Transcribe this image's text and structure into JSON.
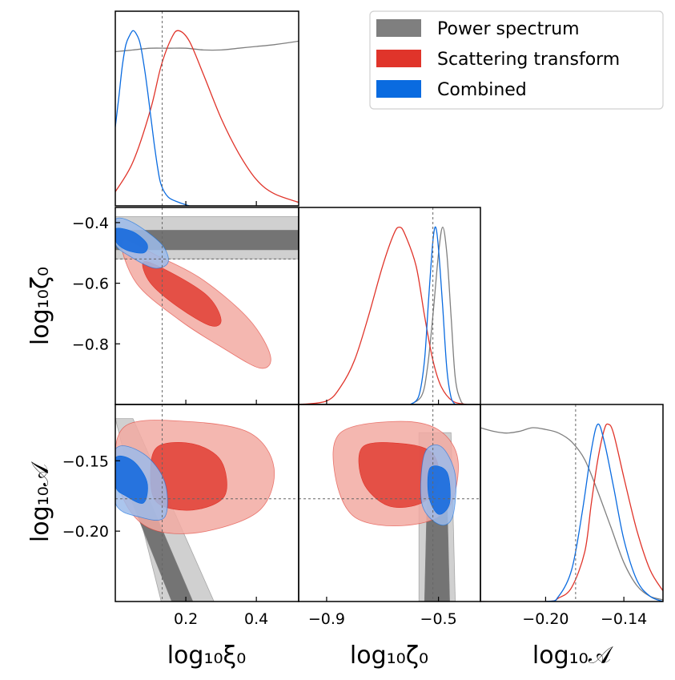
{
  "chart_data": {
    "type": "scatter",
    "subtype": "corner-plot",
    "parameters": [
      {
        "key": "xi0",
        "label": "log₁₀ξ₀",
        "truth": 0.133
      },
      {
        "key": "zeta0",
        "label": "log₁₀ζ₀",
        "truth": -0.52
      },
      {
        "key": "A",
        "label": "log₁₀𝒜",
        "truth": -0.177
      }
    ],
    "axis_ranges": {
      "xi0": [
        0.0,
        0.52
      ],
      "zeta0": [
        -1.0,
        -0.35
      ],
      "A": [
        -0.25,
        -0.11
      ]
    },
    "ticks": {
      "xi0": [
        "0.2",
        "0.4"
      ],
      "xi0_values": [
        0.2,
        0.4
      ],
      "zeta0_y": [
        "−0.4",
        "−0.6",
        "−0.8"
      ],
      "zeta0_y_values": [
        -0.4,
        -0.6,
        -0.8
      ],
      "zeta0_x": [
        "−0.9",
        "−0.5"
      ],
      "zeta0_x_values": [
        -0.9,
        -0.5
      ],
      "A_y": [
        "−0.15",
        "−0.20"
      ],
      "A_y_values": [
        -0.15,
        -0.2
      ],
      "A_x": [
        "−0.20",
        "−0.14"
      ],
      "A_x_values": [
        -0.2,
        -0.14
      ]
    },
    "series": [
      {
        "name": "Power spectrum",
        "color": "#7f7f7f",
        "inner_color": "#6f6f6f",
        "outer_color": "#c8c8c8",
        "marginal_xi0": [
          [
            0.0,
            0.88
          ],
          [
            0.05,
            0.89
          ],
          [
            0.1,
            0.9
          ],
          [
            0.15,
            0.9
          ],
          [
            0.2,
            0.9
          ],
          [
            0.25,
            0.89
          ],
          [
            0.3,
            0.89
          ],
          [
            0.35,
            0.9
          ],
          [
            0.4,
            0.91
          ],
          [
            0.45,
            0.92
          ],
          [
            0.52,
            0.94
          ]
        ],
        "marginal_zeta0": [
          [
            -0.6,
            0.0
          ],
          [
            -0.56,
            0.05
          ],
          [
            -0.54,
            0.2
          ],
          [
            -0.52,
            0.5
          ],
          [
            -0.5,
            0.85
          ],
          [
            -0.485,
            1.0
          ],
          [
            -0.47,
            0.85
          ],
          [
            -0.455,
            0.5
          ],
          [
            -0.44,
            0.15
          ],
          [
            -0.42,
            0.02
          ],
          [
            -0.4,
            0.0
          ]
        ],
        "marginal_A": [
          [
            -0.25,
            0.98
          ],
          [
            -0.24,
            0.96
          ],
          [
            -0.23,
            0.95
          ],
          [
            -0.22,
            0.96
          ],
          [
            -0.21,
            0.98
          ],
          [
            -0.2,
            0.97
          ],
          [
            -0.19,
            0.95
          ],
          [
            -0.18,
            0.9
          ],
          [
            -0.17,
            0.8
          ],
          [
            -0.16,
            0.62
          ],
          [
            -0.15,
            0.42
          ],
          [
            -0.14,
            0.22
          ],
          [
            -0.13,
            0.09
          ],
          [
            -0.12,
            0.03
          ],
          [
            -0.11,
            0.01
          ]
        ],
        "contour_xi0_zeta0": {
          "inner": [
            [
              0.0,
              -0.425
            ],
            [
              0.52,
              -0.425
            ],
            [
              0.52,
              -0.49
            ],
            [
              0.0,
              -0.49
            ]
          ],
          "outer": [
            [
              0.0,
              -0.38
            ],
            [
              0.52,
              -0.38
            ],
            [
              0.52,
              -0.52
            ],
            [
              0.0,
              -0.52
            ]
          ]
        },
        "contour_xi0_A": {
          "inner": [
            [
              0.0,
              -0.15
            ],
            [
              0.05,
              -0.15
            ],
            [
              0.22,
              -0.25
            ],
            [
              0.16,
              -0.25
            ]
          ],
          "outer": [
            [
              0.0,
              -0.12
            ],
            [
              0.05,
              -0.12
            ],
            [
              0.28,
              -0.25
            ],
            [
              0.13,
              -0.25
            ]
          ]
        },
        "contour_zeta0_A": {
          "inner": [
            [
              -0.54,
              -0.17
            ],
            [
              -0.47,
              -0.17
            ],
            [
              -0.46,
              -0.25
            ],
            [
              -0.55,
              -0.25
            ]
          ],
          "outer": [
            [
              -0.57,
              -0.13
            ],
            [
              -0.455,
              -0.13
            ],
            [
              -0.44,
              -0.25
            ],
            [
              -0.57,
              -0.25
            ]
          ]
        }
      },
      {
        "name": "Scattering transform",
        "color": "#e0342a",
        "inner_color": "#e34a40",
        "outer_color": "#f2aaa2",
        "marginal_xi0": [
          [
            0.0,
            0.08
          ],
          [
            0.05,
            0.25
          ],
          [
            0.1,
            0.55
          ],
          [
            0.13,
            0.8
          ],
          [
            0.16,
            0.96
          ],
          [
            0.18,
            1.0
          ],
          [
            0.21,
            0.94
          ],
          [
            0.25,
            0.75
          ],
          [
            0.3,
            0.5
          ],
          [
            0.35,
            0.3
          ],
          [
            0.4,
            0.15
          ],
          [
            0.45,
            0.07
          ],
          [
            0.52,
            0.02
          ]
        ],
        "marginal_zeta0": [
          [
            -1.0,
            0.0
          ],
          [
            -0.9,
            0.02
          ],
          [
            -0.85,
            0.1
          ],
          [
            -0.8,
            0.25
          ],
          [
            -0.75,
            0.5
          ],
          [
            -0.7,
            0.78
          ],
          [
            -0.66,
            0.96
          ],
          [
            -0.64,
            1.0
          ],
          [
            -0.62,
            0.96
          ],
          [
            -0.58,
            0.78
          ],
          [
            -0.55,
            0.5
          ],
          [
            -0.52,
            0.25
          ],
          [
            -0.49,
            0.1
          ],
          [
            -0.45,
            0.02
          ],
          [
            -0.4,
            0.0
          ]
        ],
        "marginal_A": [
          [
            -0.25,
            0.0
          ],
          [
            -0.2,
            0.0
          ],
          [
            -0.19,
            0.02
          ],
          [
            -0.18,
            0.08
          ],
          [
            -0.17,
            0.28
          ],
          [
            -0.165,
            0.55
          ],
          [
            -0.16,
            0.8
          ],
          [
            -0.155,
            0.97
          ],
          [
            -0.152,
            1.0
          ],
          [
            -0.148,
            0.95
          ],
          [
            -0.14,
            0.7
          ],
          [
            -0.13,
            0.4
          ],
          [
            -0.12,
            0.18
          ],
          [
            -0.11,
            0.06
          ]
        ],
        "contour_xi0_zeta0": {
          "inner": [
            [
              0.08,
              -0.53
            ],
            [
              0.15,
              -0.56
            ],
            [
              0.26,
              -0.64
            ],
            [
              0.3,
              -0.72
            ],
            [
              0.27,
              -0.74
            ],
            [
              0.18,
              -0.68
            ],
            [
              0.1,
              -0.6
            ]
          ],
          "outer": [
            [
              0.02,
              -0.46
            ],
            [
              0.12,
              -0.51
            ],
            [
              0.25,
              -0.59
            ],
            [
              0.38,
              -0.72
            ],
            [
              0.44,
              -0.84
            ],
            [
              0.41,
              -0.88
            ],
            [
              0.3,
              -0.81
            ],
            [
              0.18,
              -0.72
            ],
            [
              0.06,
              -0.6
            ]
          ]
        },
        "contour_xi0_A": {
          "inner": [
            [
              0.12,
              -0.14
            ],
            [
              0.22,
              -0.138
            ],
            [
              0.3,
              -0.15
            ],
            [
              0.31,
              -0.175
            ],
            [
              0.22,
              -0.185
            ],
            [
              0.12,
              -0.18
            ],
            [
              0.1,
              -0.16
            ]
          ],
          "outer": [
            [
              0.03,
              -0.125
            ],
            [
              0.2,
              -0.122
            ],
            [
              0.38,
              -0.13
            ],
            [
              0.45,
              -0.155
            ],
            [
              0.41,
              -0.185
            ],
            [
              0.26,
              -0.2
            ],
            [
              0.12,
              -0.2
            ],
            [
              0.04,
              -0.185
            ],
            [
              0.0,
              -0.155
            ]
          ]
        },
        "contour_zeta0_A": {
          "inner": [
            [
              -0.77,
              -0.14
            ],
            [
              -0.62,
              -0.138
            ],
            [
              -0.52,
              -0.145
            ],
            [
              -0.5,
              -0.165
            ],
            [
              -0.56,
              -0.18
            ],
            [
              -0.68,
              -0.182
            ],
            [
              -0.77,
              -0.165
            ]
          ],
          "outer": [
            [
              -0.85,
              -0.13
            ],
            [
              -0.65,
              -0.122
            ],
            [
              -0.5,
              -0.128
            ],
            [
              -0.43,
              -0.15
            ],
            [
              -0.47,
              -0.185
            ],
            [
              -0.62,
              -0.196
            ],
            [
              -0.8,
              -0.19
            ],
            [
              -0.87,
              -0.16
            ]
          ]
        }
      },
      {
        "name": "Combined",
        "color": "#0a6be0",
        "inner_color": "#1f6fdd",
        "outer_color": "#9cbbea",
        "marginal_xi0": [
          [
            0.0,
            0.45
          ],
          [
            0.01,
            0.62
          ],
          [
            0.02,
            0.8
          ],
          [
            0.03,
            0.92
          ],
          [
            0.04,
            0.97
          ],
          [
            0.05,
            1.0
          ],
          [
            0.06,
            0.98
          ],
          [
            0.07,
            0.93
          ],
          [
            0.08,
            0.82
          ],
          [
            0.09,
            0.68
          ],
          [
            0.1,
            0.52
          ],
          [
            0.11,
            0.36
          ],
          [
            0.12,
            0.22
          ],
          [
            0.13,
            0.12
          ],
          [
            0.15,
            0.05
          ],
          [
            0.18,
            0.02
          ],
          [
            0.21,
            0.0
          ]
        ],
        "marginal_zeta0": [
          [
            -0.6,
            0.0
          ],
          [
            -0.57,
            0.05
          ],
          [
            -0.55,
            0.25
          ],
          [
            -0.535,
            0.6
          ],
          [
            -0.52,
            0.92
          ],
          [
            -0.51,
            1.0
          ],
          [
            -0.5,
            0.88
          ],
          [
            -0.485,
            0.55
          ],
          [
            -0.47,
            0.2
          ],
          [
            -0.455,
            0.04
          ],
          [
            -0.44,
            0.0
          ]
        ],
        "marginal_A": [
          [
            -0.25,
            0.0
          ],
          [
            -0.2,
            0.0
          ],
          [
            -0.19,
            0.03
          ],
          [
            -0.18,
            0.18
          ],
          [
            -0.172,
            0.5
          ],
          [
            -0.165,
            0.85
          ],
          [
            -0.16,
            1.0
          ],
          [
            -0.155,
            0.9
          ],
          [
            -0.148,
            0.65
          ],
          [
            -0.14,
            0.35
          ],
          [
            -0.13,
            0.12
          ],
          [
            -0.12,
            0.03
          ],
          [
            -0.11,
            0.0
          ]
        ],
        "contour_xi0_zeta0": {
          "inner": [
            [
              0.0,
              -0.42
            ],
            [
              0.05,
              -0.43
            ],
            [
              0.09,
              -0.47
            ],
            [
              0.08,
              -0.5
            ],
            [
              0.03,
              -0.49
            ],
            [
              0.0,
              -0.46
            ]
          ],
          "outer": [
            [
              0.0,
              -0.39
            ],
            [
              0.05,
              -0.4
            ],
            [
              0.13,
              -0.47
            ],
            [
              0.15,
              -0.53
            ],
            [
              0.11,
              -0.55
            ],
            [
              0.04,
              -0.51
            ],
            [
              0.0,
              -0.47
            ]
          ]
        },
        "contour_xi0_A": {
          "inner": [
            [
              0.0,
              -0.148
            ],
            [
              0.05,
              -0.15
            ],
            [
              0.09,
              -0.165
            ],
            [
              0.08,
              -0.18
            ],
            [
              0.03,
              -0.175
            ],
            [
              0.0,
              -0.168
            ]
          ],
          "outer": [
            [
              0.0,
              -0.142
            ],
            [
              0.08,
              -0.145
            ],
            [
              0.14,
              -0.165
            ],
            [
              0.14,
              -0.19
            ],
            [
              0.07,
              -0.19
            ],
            [
              0.0,
              -0.18
            ]
          ]
        },
        "contour_zeta0_A": {
          "inner": [
            [
              -0.53,
              -0.155
            ],
            [
              -0.47,
              -0.158
            ],
            [
              -0.46,
              -0.18
            ],
            [
              -0.5,
              -0.188
            ],
            [
              -0.535,
              -0.175
            ]
          ],
          "outer": [
            [
              -0.55,
              -0.145
            ],
            [
              -0.49,
              -0.14
            ],
            [
              -0.44,
              -0.16
            ],
            [
              -0.45,
              -0.19
            ],
            [
              -0.5,
              -0.195
            ],
            [
              -0.56,
              -0.18
            ]
          ]
        }
      }
    ],
    "legend": {
      "placement": "top-right",
      "entries": [
        "Power spectrum",
        "Scattering transform",
        "Combined"
      ]
    },
    "grid": false
  }
}
